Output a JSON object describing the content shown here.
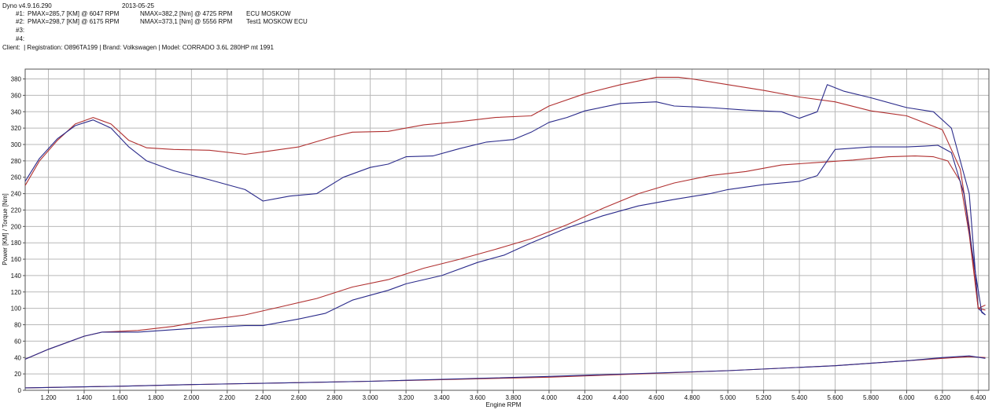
{
  "header": {
    "app_version": "Dyno v4.9.16.290",
    "date": "2013-05-25",
    "runs": [
      {
        "id": "#1:",
        "pmax": "PMAX=285,7 [KM] @ 6047 RPM",
        "nmax": "NMAX=382,2 [Nm] @ 4725 RPM",
        "name": "ECU MOSKOW"
      },
      {
        "id": "#2:",
        "pmax": "PMAX=298,7 [KM] @ 6175 RPM",
        "nmax": "NMAX=373,1 [Nm] @ 5556 RPM",
        "name": "Test1 MOSKOW ECU"
      },
      {
        "id": "#3:",
        "pmax": "",
        "nmax": "",
        "name": ""
      },
      {
        "id": "#4:",
        "pmax": "",
        "nmax": "",
        "name": ""
      }
    ],
    "client_line": "Client:  | Registration: O896TA199 | Brand: Volkswagen | Model: CORRADO 3.6L 280HP mt 1991"
  },
  "chart_data": {
    "type": "line",
    "xlabel": "Engine RPM",
    "ylabel": "Power [KM] / Torque [Nm]",
    "xlim": [
      1070,
      6460
    ],
    "ylim": [
      0,
      392
    ],
    "x_ticks": [
      "1.200",
      "1.400",
      "1.600",
      "1.800",
      "2.000",
      "2.200",
      "2.400",
      "2.600",
      "2.800",
      "3.000",
      "3.200",
      "3.400",
      "3.600",
      "3.800",
      "4.000",
      "4.200",
      "4.400",
      "4.600",
      "4.800",
      "5.000",
      "5.200",
      "5.400",
      "5.600",
      "5.800",
      "6.000",
      "6.200",
      "6.400"
    ],
    "y_ticks": [
      "0",
      "20",
      "40",
      "60",
      "80",
      "100",
      "120",
      "140",
      "160",
      "180",
      "200",
      "220",
      "240",
      "260",
      "280",
      "300",
      "320",
      "340",
      "360",
      "380"
    ],
    "grid": true,
    "colors": {
      "run1": "#b03030",
      "run2": "#2a2a8a",
      "grid": "#b8b8b8"
    },
    "series": [
      {
        "key": "torque_run1",
        "color": "#b03030",
        "points": [
          [
            1070,
            250
          ],
          [
            1150,
            280
          ],
          [
            1250,
            305
          ],
          [
            1350,
            325
          ],
          [
            1450,
            333
          ],
          [
            1550,
            325
          ],
          [
            1650,
            305
          ],
          [
            1750,
            296
          ],
          [
            1900,
            294
          ],
          [
            2100,
            293
          ],
          [
            2300,
            288
          ],
          [
            2400,
            291
          ],
          [
            2600,
            297
          ],
          [
            2800,
            310
          ],
          [
            2900,
            315
          ],
          [
            3100,
            316
          ],
          [
            3300,
            324
          ],
          [
            3500,
            328
          ],
          [
            3700,
            333
          ],
          [
            3900,
            335
          ],
          [
            4000,
            347
          ],
          [
            4200,
            362
          ],
          [
            4400,
            373
          ],
          [
            4600,
            382
          ],
          [
            4725,
            382
          ],
          [
            4800,
            380
          ],
          [
            5000,
            373
          ],
          [
            5200,
            366
          ],
          [
            5400,
            358
          ],
          [
            5600,
            352
          ],
          [
            5800,
            341
          ],
          [
            6000,
            335
          ],
          [
            6200,
            318
          ],
          [
            6300,
            270
          ],
          [
            6350,
            200
          ],
          [
            6400,
            100
          ],
          [
            6440,
            104
          ]
        ]
      },
      {
        "key": "torque_run2",
        "color": "#2a2a8a",
        "points": [
          [
            1070,
            255
          ],
          [
            1150,
            283
          ],
          [
            1250,
            307
          ],
          [
            1350,
            323
          ],
          [
            1450,
            330
          ],
          [
            1550,
            320
          ],
          [
            1650,
            297
          ],
          [
            1750,
            280
          ],
          [
            1900,
            268
          ],
          [
            2100,
            257
          ],
          [
            2300,
            245
          ],
          [
            2400,
            231
          ],
          [
            2550,
            237
          ],
          [
            2700,
            240
          ],
          [
            2850,
            260
          ],
          [
            3000,
            272
          ],
          [
            3100,
            276
          ],
          [
            3200,
            285
          ],
          [
            3350,
            286
          ],
          [
            3500,
            295
          ],
          [
            3650,
            303
          ],
          [
            3800,
            306
          ],
          [
            3900,
            315
          ],
          [
            4000,
            327
          ],
          [
            4100,
            333
          ],
          [
            4200,
            341
          ],
          [
            4400,
            350
          ],
          [
            4600,
            352
          ],
          [
            4700,
            347
          ],
          [
            4900,
            345
          ],
          [
            5100,
            342
          ],
          [
            5300,
            340
          ],
          [
            5400,
            332
          ],
          [
            5500,
            340
          ],
          [
            5556,
            373
          ],
          [
            5650,
            365
          ],
          [
            5800,
            357
          ],
          [
            6000,
            345
          ],
          [
            6150,
            340
          ],
          [
            6250,
            320
          ],
          [
            6350,
            240
          ],
          [
            6400,
            100
          ],
          [
            6440,
            92
          ]
        ]
      },
      {
        "key": "power_run1",
        "color": "#b03030",
        "points": [
          [
            1070,
            38
          ],
          [
            1200,
            50
          ],
          [
            1400,
            66
          ],
          [
            1500,
            71
          ],
          [
            1700,
            73
          ],
          [
            1900,
            78
          ],
          [
            2100,
            86
          ],
          [
            2300,
            92
          ],
          [
            2500,
            102
          ],
          [
            2700,
            112
          ],
          [
            2900,
            126
          ],
          [
            3100,
            135
          ],
          [
            3300,
            149
          ],
          [
            3500,
            160
          ],
          [
            3700,
            172
          ],
          [
            3900,
            185
          ],
          [
            4100,
            202
          ],
          [
            4300,
            222
          ],
          [
            4500,
            240
          ],
          [
            4700,
            253
          ],
          [
            4900,
            262
          ],
          [
            5100,
            267
          ],
          [
            5300,
            275
          ],
          [
            5500,
            278
          ],
          [
            5700,
            281
          ],
          [
            5900,
            285
          ],
          [
            6047,
            286
          ],
          [
            6150,
            285
          ],
          [
            6230,
            280
          ],
          [
            6300,
            255
          ],
          [
            6350,
            190
          ],
          [
            6400,
            100
          ],
          [
            6440,
            98
          ]
        ]
      },
      {
        "key": "power_run2",
        "color": "#2a2a8a",
        "points": [
          [
            1070,
            38
          ],
          [
            1200,
            50
          ],
          [
            1400,
            66
          ],
          [
            1500,
            71
          ],
          [
            1700,
            71
          ],
          [
            1900,
            74
          ],
          [
            2100,
            77
          ],
          [
            2300,
            79
          ],
          [
            2400,
            79
          ],
          [
            2600,
            87
          ],
          [
            2750,
            94
          ],
          [
            2900,
            110
          ],
          [
            3100,
            122
          ],
          [
            3200,
            130
          ],
          [
            3400,
            140
          ],
          [
            3600,
            156
          ],
          [
            3750,
            165
          ],
          [
            3900,
            180
          ],
          [
            4100,
            198
          ],
          [
            4300,
            213
          ],
          [
            4500,
            225
          ],
          [
            4700,
            233
          ],
          [
            4900,
            240
          ],
          [
            5000,
            245
          ],
          [
            5200,
            251
          ],
          [
            5400,
            255
          ],
          [
            5500,
            262
          ],
          [
            5600,
            294
          ],
          [
            5800,
            297
          ],
          [
            6000,
            297
          ],
          [
            6100,
            298
          ],
          [
            6175,
            299
          ],
          [
            6250,
            290
          ],
          [
            6320,
            240
          ],
          [
            6380,
            150
          ],
          [
            6420,
            95
          ],
          [
            6440,
            92
          ]
        ]
      },
      {
        "key": "line_low_run1",
        "color": "#b03030",
        "points": [
          [
            1070,
            3
          ],
          [
            1600,
            5
          ],
          [
            2000,
            7
          ],
          [
            3000,
            11
          ],
          [
            4000,
            16
          ],
          [
            5000,
            24
          ],
          [
            5600,
            30
          ],
          [
            6000,
            36
          ],
          [
            6200,
            39
          ],
          [
            6350,
            41
          ],
          [
            6440,
            40
          ]
        ]
      },
      {
        "key": "line_low_run2",
        "color": "#2a2a8a",
        "points": [
          [
            1070,
            3
          ],
          [
            1600,
            5
          ],
          [
            2000,
            7
          ],
          [
            3000,
            11
          ],
          [
            4000,
            17
          ],
          [
            5000,
            24
          ],
          [
            5600,
            30
          ],
          [
            6000,
            36
          ],
          [
            6200,
            40
          ],
          [
            6350,
            42
          ],
          [
            6440,
            39
          ]
        ]
      }
    ]
  }
}
